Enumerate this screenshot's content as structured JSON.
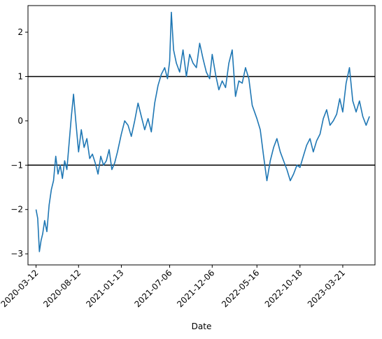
{
  "chart_data": {
    "type": "line",
    "title": "",
    "xlabel": "Date",
    "ylabel": "",
    "ylim": [
      -3.25,
      2.6
    ],
    "xlim": [
      "2020-02-12",
      "2023-07-15"
    ],
    "grid": false,
    "legend": "none",
    "colors": {
      "series": "#1f77b4",
      "hline": "#000000",
      "axes": "#000000"
    },
    "x_ticks": [
      "2020-03-12",
      "2020-08-12",
      "2021-01-13",
      "2021-07-06",
      "2021-12-06",
      "2022-05-16",
      "2022-10-18",
      "2023-03-21"
    ],
    "y_ticks": [
      -3,
      -2,
      -1,
      0,
      1,
      2
    ],
    "hlines": [
      1,
      -1
    ],
    "series": [
      {
        "color": "#1f77b4",
        "x": [
          "2020-03-12",
          "2020-03-18",
          "2020-03-24",
          "2020-03-30",
          "2020-04-05",
          "2020-04-12",
          "2020-04-20",
          "2020-04-28",
          "2020-05-06",
          "2020-05-14",
          "2020-05-22",
          "2020-05-30",
          "2020-06-07",
          "2020-06-15",
          "2020-06-23",
          "2020-07-01",
          "2020-07-09",
          "2020-07-17",
          "2020-07-25",
          "2020-08-02",
          "2020-08-12",
          "2020-08-22",
          "2020-09-01",
          "2020-09-11",
          "2020-09-21",
          "2020-10-01",
          "2020-10-11",
          "2020-10-21",
          "2020-10-31",
          "2020-11-10",
          "2020-11-20",
          "2020-11-30",
          "2020-12-10",
          "2020-12-20",
          "2020-12-30",
          "2021-01-13",
          "2021-01-25",
          "2021-02-06",
          "2021-02-18",
          "2021-03-02",
          "2021-03-14",
          "2021-03-26",
          "2021-04-07",
          "2021-04-19",
          "2021-05-01",
          "2021-05-13",
          "2021-05-25",
          "2021-06-06",
          "2021-06-18",
          "2021-06-28",
          "2021-07-06",
          "2021-07-12",
          "2021-07-20",
          "2021-07-30",
          "2021-08-11",
          "2021-08-23",
          "2021-09-04",
          "2021-09-16",
          "2021-09-28",
          "2021-10-10",
          "2021-10-22",
          "2021-11-03",
          "2021-11-15",
          "2021-11-27",
          "2021-12-06",
          "2021-12-18",
          "2021-12-30",
          "2022-01-11",
          "2022-01-23",
          "2022-02-04",
          "2022-02-16",
          "2022-02-28",
          "2022-03-12",
          "2022-03-24",
          "2022-04-05",
          "2022-04-17",
          "2022-04-29",
          "2022-05-16",
          "2022-05-28",
          "2022-06-09",
          "2022-06-21",
          "2022-07-03",
          "2022-07-15",
          "2022-07-27",
          "2022-08-08",
          "2022-08-20",
          "2022-09-01",
          "2022-09-13",
          "2022-09-25",
          "2022-10-07",
          "2022-10-18",
          "2022-10-30",
          "2022-11-11",
          "2022-11-23",
          "2022-12-05",
          "2022-12-17",
          "2022-12-29",
          "2023-01-10",
          "2023-01-22",
          "2023-02-03",
          "2023-02-15",
          "2023-02-27",
          "2023-03-10",
          "2023-03-21",
          "2023-04-02",
          "2023-04-14",
          "2023-04-26",
          "2023-05-08",
          "2023-05-20",
          "2023-06-01",
          "2023-06-13",
          "2023-06-25"
        ],
        "y": [
          -2.0,
          -2.2,
          -2.95,
          -2.7,
          -2.55,
          -2.25,
          -2.5,
          -1.9,
          -1.55,
          -1.35,
          -0.8,
          -1.2,
          -1.0,
          -1.3,
          -0.9,
          -1.1,
          -0.5,
          0.1,
          0.6,
          0.0,
          -0.7,
          -0.2,
          -0.6,
          -0.4,
          -0.85,
          -0.75,
          -0.95,
          -1.2,
          -0.8,
          -1.0,
          -0.9,
          -0.65,
          -1.1,
          -0.95,
          -0.7,
          -0.3,
          0.0,
          -0.1,
          -0.35,
          0.0,
          0.4,
          0.1,
          -0.2,
          0.05,
          -0.25,
          0.4,
          0.8,
          1.05,
          1.2,
          0.95,
          1.35,
          2.45,
          1.6,
          1.3,
          1.1,
          1.6,
          1.0,
          1.5,
          1.3,
          1.2,
          1.75,
          1.4,
          1.1,
          0.95,
          1.5,
          1.05,
          0.7,
          0.9,
          0.75,
          1.3,
          1.6,
          0.55,
          0.9,
          0.85,
          1.2,
          0.95,
          0.35,
          0.05,
          -0.2,
          -0.8,
          -1.35,
          -0.9,
          -0.6,
          -0.4,
          -0.7,
          -0.9,
          -1.1,
          -1.35,
          -1.2,
          -1.0,
          -1.05,
          -0.8,
          -0.55,
          -0.4,
          -0.7,
          -0.45,
          -0.3,
          0.05,
          0.25,
          -0.1,
          0.0,
          0.15,
          0.5,
          0.2,
          0.85,
          1.2,
          0.45,
          0.2,
          0.45,
          0.1,
          -0.1,
          0.1
        ]
      }
    ]
  }
}
